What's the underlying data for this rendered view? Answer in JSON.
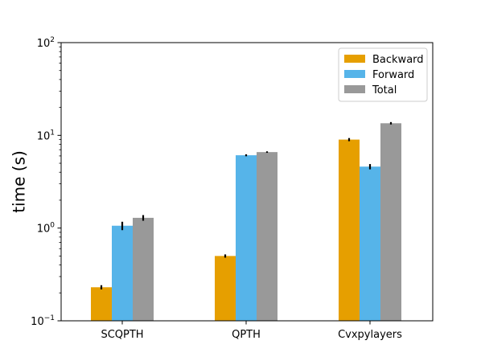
{
  "chart_data": {
    "type": "bar",
    "title": "",
    "xlabel": "",
    "ylabel": "time (s)",
    "yscale": "log",
    "ylim": [
      0.1,
      100
    ],
    "ytick_values": [
      0.1,
      1,
      10,
      100
    ],
    "ytick_exponents": [
      "−1",
      "0",
      "1",
      "2"
    ],
    "ytick_base": "10",
    "grid": false,
    "legend_position": "top-right",
    "categories": [
      "SCQPTH",
      "QPTH",
      "Cvxpylayers"
    ],
    "series": [
      {
        "name": "Backward",
        "color": "#E69F00",
        "values": [
          0.23,
          0.5,
          9.0
        ],
        "err": [
          0.012,
          0.02,
          0.35
        ]
      },
      {
        "name": "Forward",
        "color": "#56B4E9",
        "values": [
          1.06,
          6.1,
          4.6
        ],
        "err": [
          0.11,
          0.15,
          0.3
        ]
      },
      {
        "name": "Total",
        "color": "#999999",
        "values": [
          1.29,
          6.6,
          13.5
        ],
        "err": [
          0.09,
          0.12,
          0.4
        ]
      }
    ]
  }
}
